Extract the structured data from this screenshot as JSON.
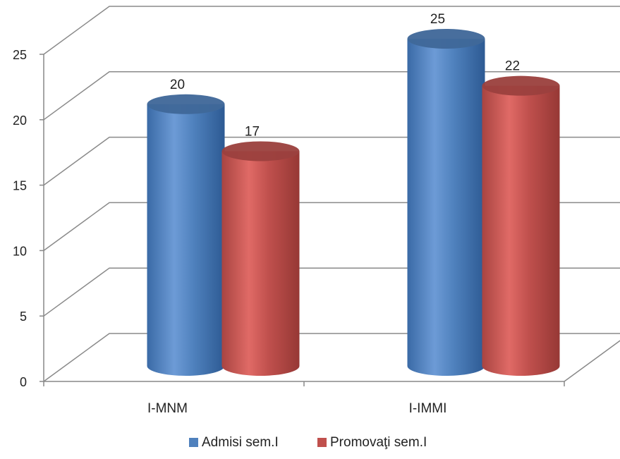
{
  "chart_data": {
    "type": "bar",
    "style": "3d-cylinder",
    "categories": [
      "I-MNM",
      "I-IMMI"
    ],
    "series": [
      {
        "name": "Admisi sem.I",
        "values": [
          20,
          25
        ],
        "color": "#4f81bd"
      },
      {
        "name": "Promovaţi sem.I",
        "values": [
          17,
          22
        ],
        "color": "#c0504d"
      }
    ],
    "ylim": [
      0,
      25
    ],
    "yticks": [
      0,
      5,
      10,
      15,
      20,
      25
    ],
    "grid": true,
    "legend": "bottom"
  }
}
